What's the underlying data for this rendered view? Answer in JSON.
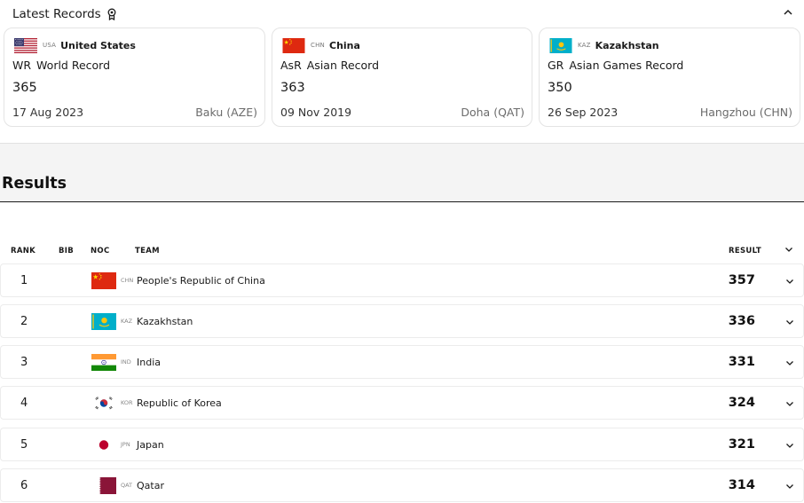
{
  "records": {
    "title": "Latest Records",
    "items": [
      {
        "country_code": "USA",
        "country_name": "United States",
        "abbr": "WR",
        "record_type": "World Record",
        "value": "365",
        "date": "17 Aug 2023",
        "place": "Baku (AZE)",
        "flag": "usa-flag-icon"
      },
      {
        "country_code": "CHN",
        "country_name": "China",
        "abbr": "AsR",
        "record_type": "Asian Record",
        "value": "363",
        "date": "09 Nov 2019",
        "place": "Doha (QAT)",
        "flag": "china-flag-icon"
      },
      {
        "country_code": "KAZ",
        "country_name": "Kazakhstan",
        "abbr": "GR",
        "record_type": "Asian Games Record",
        "value": "350",
        "date": "26 Sep 2023",
        "place": "Hangzhou (CHN)",
        "flag": "kazakhstan-flag-icon"
      }
    ]
  },
  "results": {
    "title": "Results",
    "columns": {
      "rank": "RANK",
      "bib": "BIB",
      "noc": "NOC",
      "team": "TEAM",
      "result": "RESULT"
    },
    "rows": [
      {
        "rank": "1",
        "noc": "CHN",
        "team": "People's Republic of China",
        "result": "357",
        "flag": "china-flag-icon"
      },
      {
        "rank": "2",
        "noc": "KAZ",
        "team": "Kazakhstan",
        "result": "336",
        "flag": "kazakhstan-flag-icon"
      },
      {
        "rank": "3",
        "noc": "IND",
        "team": "India",
        "result": "331",
        "flag": "india-flag-icon"
      },
      {
        "rank": "4",
        "noc": "KOR",
        "team": "Republic of Korea",
        "result": "324",
        "flag": "korea-flag-icon"
      },
      {
        "rank": "5",
        "noc": "JPN",
        "team": "Japan",
        "result": "321",
        "flag": "japan-flag-icon"
      },
      {
        "rank": "6",
        "noc": "QAT",
        "team": "Qatar",
        "result": "314",
        "flag": "qatar-flag-icon"
      }
    ]
  },
  "colors": {
    "china_red": "#de2910",
    "china_star": "#ffde00",
    "kaz_blue": "#00afca",
    "kaz_gold": "#fec50c",
    "india_saffron": "#ff9933",
    "india_green": "#138808",
    "india_chakra": "#000080",
    "japan_red": "#bc002d",
    "qatar_maroon": "#8a1538",
    "usa_red": "#b22234",
    "usa_blue": "#3c3b6e",
    "korea_red": "#cd2e3a",
    "korea_blue": "#0047a0"
  }
}
